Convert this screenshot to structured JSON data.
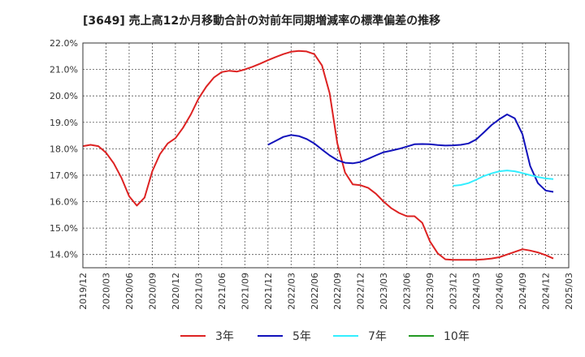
{
  "chart_data": {
    "type": "line",
    "title": "[3649]  売上高12か月移動合計の対前年同期増減率の標準偏差の推移",
    "xlabel": "",
    "ylabel": "",
    "ylim": [
      13.5,
      22.0
    ],
    "yticks": [
      "14.0%",
      "15.0%",
      "16.0%",
      "17.0%",
      "18.0%",
      "19.0%",
      "20.0%",
      "21.0%",
      "22.0%"
    ],
    "ytick_values": [
      14,
      15,
      16,
      17,
      18,
      19,
      20,
      21,
      22
    ],
    "xticks": [
      "2019/12",
      "2020/03",
      "2020/06",
      "2020/09",
      "2020/12",
      "2021/03",
      "2021/06",
      "2021/09",
      "2021/12",
      "2022/03",
      "2022/06",
      "2022/09",
      "2022/12",
      "2023/03",
      "2023/06",
      "2023/09",
      "2023/12",
      "2024/03",
      "2024/06",
      "2024/09",
      "2024/12",
      "2025/03"
    ],
    "x_start": "2019/12",
    "x_months": 63,
    "grid": true,
    "legend_position": "bottom",
    "series": [
      {
        "name": "3年",
        "color": "#dd2222",
        "start_month": 0,
        "values": [
          18.1,
          18.15,
          18.1,
          17.85,
          17.45,
          16.9,
          16.2,
          15.85,
          16.15,
          17.15,
          17.8,
          18.2,
          18.4,
          18.8,
          19.3,
          19.9,
          20.35,
          20.7,
          20.9,
          20.95,
          20.92,
          21.0,
          21.1,
          21.22,
          21.35,
          21.47,
          21.58,
          21.67,
          21.7,
          21.68,
          21.58,
          21.15,
          20.1,
          18.2,
          17.1,
          16.65,
          16.62,
          16.52,
          16.3,
          16.0,
          15.75,
          15.57,
          15.45,
          15.45,
          15.2,
          14.5,
          14.05,
          13.82,
          13.8,
          13.8,
          13.8,
          13.8,
          13.82,
          13.85,
          13.9,
          14.0,
          14.1,
          14.2,
          14.15,
          14.08,
          13.98,
          13.85
        ]
      },
      {
        "name": "5年",
        "color": "#1111bb",
        "start_month": 24,
        "values": [
          18.15,
          18.3,
          18.45,
          18.52,
          18.48,
          18.37,
          18.2,
          17.97,
          17.75,
          17.57,
          17.47,
          17.45,
          17.5,
          17.62,
          17.75,
          17.87,
          17.93,
          18.0,
          18.08,
          18.17,
          18.18,
          18.17,
          18.14,
          18.12,
          18.13,
          18.15,
          18.2,
          18.35,
          18.62,
          18.9,
          19.12,
          19.3,
          19.15,
          18.55,
          17.35,
          16.7,
          16.42,
          16.37
        ]
      },
      {
        "name": "7年",
        "color": "#33eeff",
        "start_month": 48,
        "values": [
          16.6,
          16.63,
          16.7,
          16.83,
          16.97,
          17.07,
          17.15,
          17.18,
          17.15,
          17.08,
          17.0,
          16.93,
          16.88,
          16.85
        ]
      },
      {
        "name": "10年",
        "color": "#229922",
        "start_month": 0,
        "values": []
      }
    ]
  }
}
